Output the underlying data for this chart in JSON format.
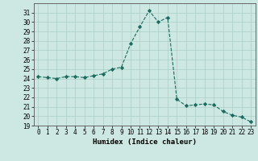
{
  "x": [
    0,
    1,
    2,
    3,
    4,
    5,
    6,
    7,
    8,
    9,
    10,
    11,
    12,
    13,
    14,
    15,
    16,
    17,
    18,
    19,
    20,
    21,
    22,
    23
  ],
  "y": [
    24.2,
    24.1,
    24.0,
    24.2,
    24.2,
    24.1,
    24.3,
    24.5,
    25.0,
    25.2,
    27.7,
    29.5,
    31.2,
    30.0,
    30.5,
    21.8,
    21.1,
    21.2,
    21.3,
    21.2,
    20.5,
    20.1,
    19.9,
    19.4
  ],
  "xlabel": "Humidex (Indice chaleur)",
  "ylim": [
    19,
    32
  ],
  "xlim": [
    -0.5,
    23.5
  ],
  "yticks": [
    19,
    20,
    21,
    22,
    23,
    24,
    25,
    26,
    27,
    28,
    29,
    30,
    31
  ],
  "xticks": [
    0,
    1,
    2,
    3,
    4,
    5,
    6,
    7,
    8,
    9,
    10,
    11,
    12,
    13,
    14,
    15,
    16,
    17,
    18,
    19,
    20,
    21,
    22,
    23
  ],
  "line_color": "#1a6b5e",
  "marker": "D",
  "marker_size": 2.2,
  "bg_color": "#cde8e2",
  "grid_color": "#aacfc8",
  "label_fontsize": 6.5,
  "tick_fontsize": 5.5
}
